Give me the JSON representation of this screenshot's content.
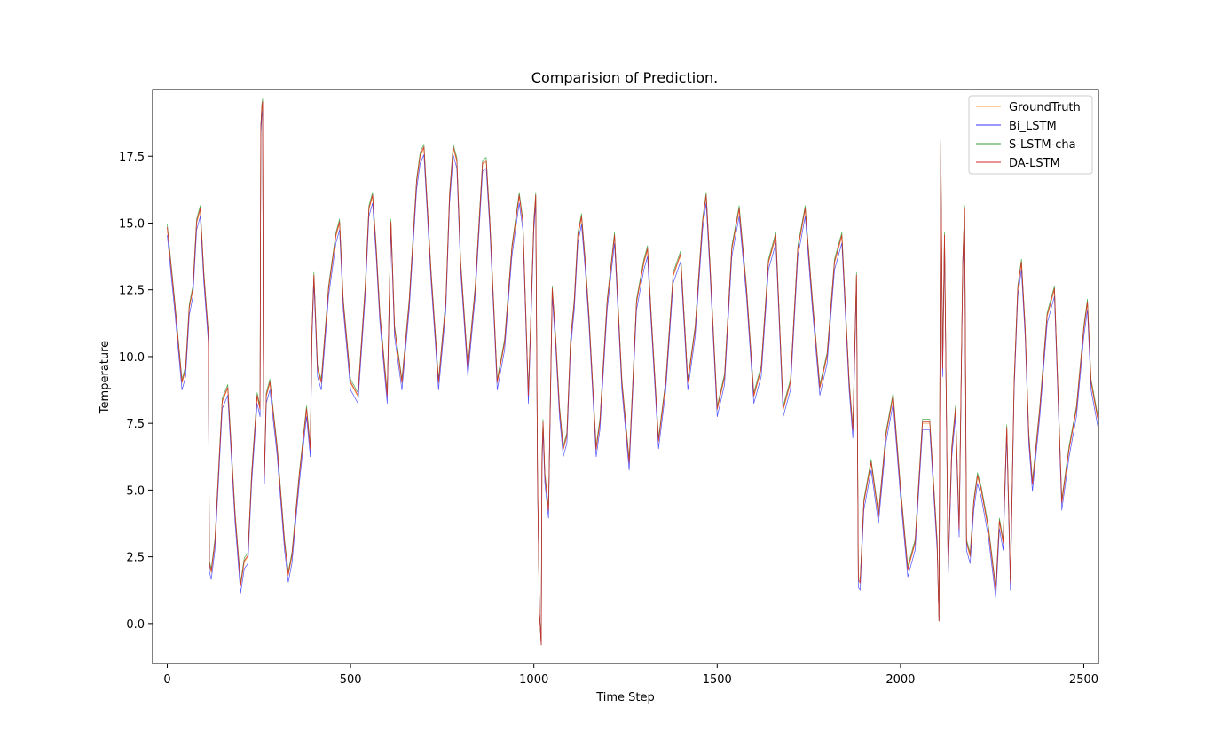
{
  "chart_data": {
    "type": "line",
    "title": "Comparision of Prediction.",
    "xlabel": "Time Step",
    "ylabel": "Temperature",
    "xlim": [
      -40,
      2540
    ],
    "ylim": [
      -1.5,
      20.0
    ],
    "xticks": [
      0,
      500,
      1000,
      1500,
      2000,
      2500
    ],
    "xtick_labels": [
      "0",
      "500",
      "1000",
      "1500",
      "2000",
      "2500"
    ],
    "yticks": [
      0.0,
      2.5,
      5.0,
      7.5,
      10.0,
      12.5,
      15.0,
      17.5
    ],
    "ytick_labels": [
      "0.0",
      "2.5",
      "5.0",
      "7.5",
      "10.0",
      "12.5",
      "15.0",
      "17.5"
    ],
    "grid": false,
    "legend_position": "top-right",
    "series": [
      {
        "name": "GroundTruth",
        "color": "#ff9e2c",
        "offset": 0.0,
        "width": 0.7,
        "opacity": 0.9
      },
      {
        "name": "Bi_LSTM",
        "color": "#3030ff",
        "offset": -0.25,
        "width": 0.7,
        "opacity": 0.85
      },
      {
        "name": "S-LSTM-cha",
        "color": "#2ca02c",
        "offset": 0.15,
        "width": 0.7,
        "opacity": 0.85
      },
      {
        "name": "DA-LSTM",
        "color": "#d62728",
        "offset": 0.05,
        "width": 0.8,
        "opacity": 0.9
      }
    ],
    "x": [
      0,
      20,
      40,
      50,
      60,
      70,
      80,
      90,
      100,
      112,
      115,
      120,
      130,
      150,
      165,
      185,
      200,
      210,
      220,
      230,
      245,
      253,
      255,
      258,
      260,
      262,
      265,
      270,
      280,
      300,
      320,
      330,
      340,
      360,
      380,
      390,
      395,
      400,
      410,
      420,
      440,
      460,
      470,
      480,
      500,
      520,
      540,
      550,
      560,
      570,
      580,
      600,
      610,
      620,
      640,
      660,
      680,
      690,
      700,
      720,
      740,
      760,
      770,
      780,
      790,
      800,
      820,
      840,
      860,
      870,
      880,
      900,
      920,
      940,
      960,
      970,
      985,
      1000,
      1005,
      1010,
      1015,
      1020,
      1022,
      1025,
      1030,
      1040,
      1050,
      1060,
      1070,
      1080,
      1090,
      1100,
      1110,
      1120,
      1130,
      1140,
      1150,
      1160,
      1170,
      1180,
      1200,
      1220,
      1240,
      1260,
      1280,
      1300,
      1310,
      1320,
      1340,
      1360,
      1380,
      1400,
      1420,
      1440,
      1460,
      1470,
      1480,
      1500,
      1520,
      1540,
      1560,
      1580,
      1600,
      1620,
      1640,
      1660,
      1680,
      1700,
      1720,
      1740,
      1760,
      1780,
      1800,
      1820,
      1840,
      1860,
      1870,
      1880,
      1885,
      1890,
      1900,
      1920,
      1940,
      1960,
      1980,
      2000,
      2020,
      2040,
      2060,
      2080,
      2100,
      2105,
      2110,
      2115,
      2120,
      2130,
      2140,
      2150,
      2160,
      2170,
      2175,
      2180,
      2190,
      2200,
      2210,
      2220,
      2240,
      2260,
      2270,
      2280,
      2290,
      2300,
      2310,
      2320,
      2330,
      2340,
      2350,
      2360,
      2380,
      2400,
      2420,
      2440,
      2460,
      2480,
      2500,
      2510,
      2520,
      2540
    ],
    "y": [
      14.8,
      12.0,
      9.0,
      9.5,
      11.8,
      12.5,
      15.0,
      15.5,
      13.0,
      10.8,
      2.2,
      1.9,
      3.0,
      8.3,
      8.8,
      4.0,
      1.4,
      2.3,
      2.5,
      5.5,
      8.5,
      8.0,
      18.5,
      19.3,
      19.5,
      10.0,
      5.5,
      8.5,
      9.0,
      6.5,
      3.0,
      1.8,
      2.5,
      5.5,
      8.0,
      6.5,
      11.0,
      13.0,
      9.5,
      9.0,
      12.5,
      14.5,
      15.0,
      12.0,
      9.0,
      8.5,
      12.5,
      15.5,
      16.0,
      14.0,
      11.5,
      8.5,
      15.0,
      11.0,
      9.0,
      12.0,
      16.5,
      17.5,
      17.8,
      13.0,
      9.0,
      12.0,
      16.0,
      17.8,
      17.3,
      13.5,
      9.5,
      12.5,
      17.2,
      17.3,
      15.0,
      9.0,
      10.5,
      14.0,
      16.0,
      15.0,
      8.5,
      15.0,
      16.0,
      5.5,
      0.5,
      -0.8,
      6.0,
      7.5,
      5.5,
      4.2,
      12.5,
      10.5,
      8.0,
      6.5,
      7.0,
      10.5,
      12.0,
      14.5,
      15.2,
      13.5,
      11.5,
      9.0,
      6.5,
      7.5,
      12.0,
      14.5,
      9.0,
      6.0,
      12.0,
      13.5,
      14.0,
      11.5,
      6.8,
      9.0,
      13.0,
      13.8,
      9.0,
      11.0,
      15.0,
      16.0,
      13.5,
      8.0,
      9.2,
      14.0,
      15.5,
      12.5,
      8.5,
      9.5,
      13.5,
      14.5,
      8.0,
      9.0,
      14.0,
      15.5,
      12.0,
      8.8,
      10.0,
      13.5,
      14.5,
      9.0,
      7.2,
      13.0,
      1.6,
      1.5,
      4.5,
      6.0,
      4.0,
      7.0,
      8.5,
      5.0,
      2.0,
      3.0,
      7.5,
      7.5,
      3.0,
      0.1,
      18.0,
      9.5,
      14.5,
      2.0,
      6.5,
      8.0,
      3.5,
      13.5,
      15.5,
      3.0,
      2.5,
      4.5,
      5.5,
      5.0,
      3.5,
      1.2,
      3.8,
      3.0,
      7.3,
      1.5,
      9.0,
      12.5,
      13.5,
      11.0,
      7.0,
      5.2,
      8.0,
      11.5,
      12.5,
      4.5,
      6.5,
      8.0,
      11.0,
      12.0,
      9.0,
      7.5
    ]
  },
  "legend": {
    "items": [
      "GroundTruth",
      "Bi_LSTM",
      "S-LSTM-cha",
      "DA-LSTM"
    ]
  }
}
